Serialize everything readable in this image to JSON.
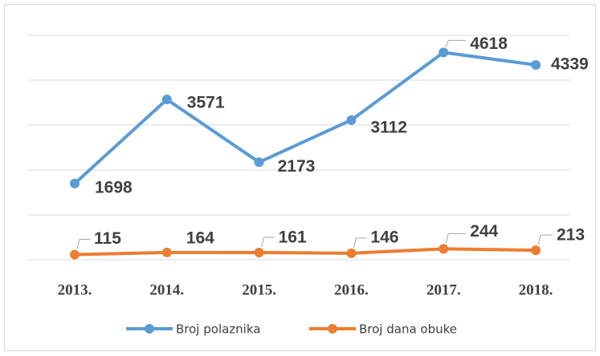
{
  "chart_data": {
    "type": "line",
    "categories": [
      "2013.",
      "2014.",
      "2015.",
      "2016.",
      "2017.",
      "2018."
    ],
    "series": [
      {
        "name": "Broj polaznika",
        "color": "#5b9bd5",
        "values": [
          1698,
          3571,
          2173,
          3112,
          4618,
          4339
        ]
      },
      {
        "name": "Broj dana obuke",
        "color": "#ed7d31",
        "values": [
          115,
          164,
          161,
          146,
          244,
          213
        ]
      }
    ],
    "ylim": [
      0,
      5000
    ],
    "yticks": [
      0,
      1000,
      2000,
      3000,
      4000,
      5000
    ],
    "grid": true,
    "legend": "bottom"
  }
}
